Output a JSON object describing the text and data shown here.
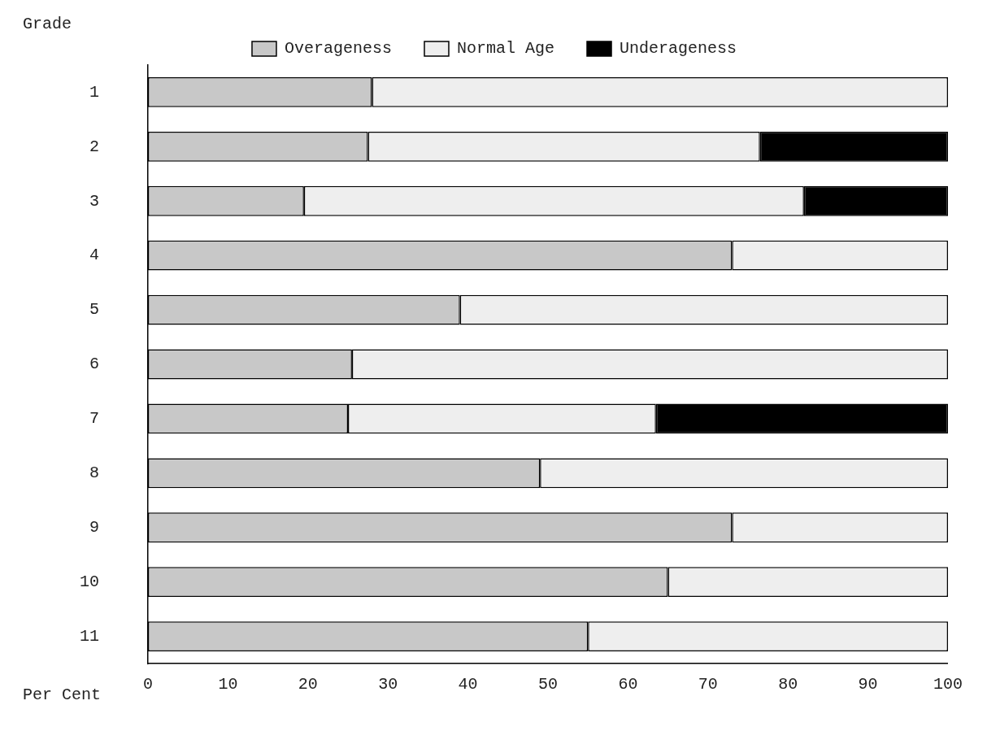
{
  "chart_data": {
    "type": "bar",
    "orientation": "horizontal",
    "stacked": true,
    "ylabel": "Grade",
    "xlabel": "Per Cent",
    "categories": [
      "1",
      "2",
      "3",
      "4",
      "5",
      "6",
      "7",
      "8",
      "9",
      "10",
      "11"
    ],
    "series": [
      {
        "name": "Overageness",
        "color": "#c8c8c8",
        "values": [
          28,
          27.5,
          19.5,
          73,
          39,
          25.5,
          25,
          49,
          73,
          65,
          55
        ]
      },
      {
        "name": "Normal Age",
        "color": "#eeeeee",
        "values": [
          72,
          49,
          62.5,
          27,
          61,
          74.5,
          38.5,
          51,
          27,
          35,
          45
        ]
      },
      {
        "name": "Underageness",
        "color": "#000000",
        "values": [
          0,
          23.5,
          18,
          0,
          0,
          0,
          36.5,
          0,
          0,
          0,
          0
        ]
      }
    ],
    "xlim": [
      0,
      100
    ],
    "xticks": [
      0,
      10,
      20,
      30,
      40,
      50,
      60,
      70,
      80,
      90,
      100
    ],
    "grid": false,
    "legend": "top"
  }
}
